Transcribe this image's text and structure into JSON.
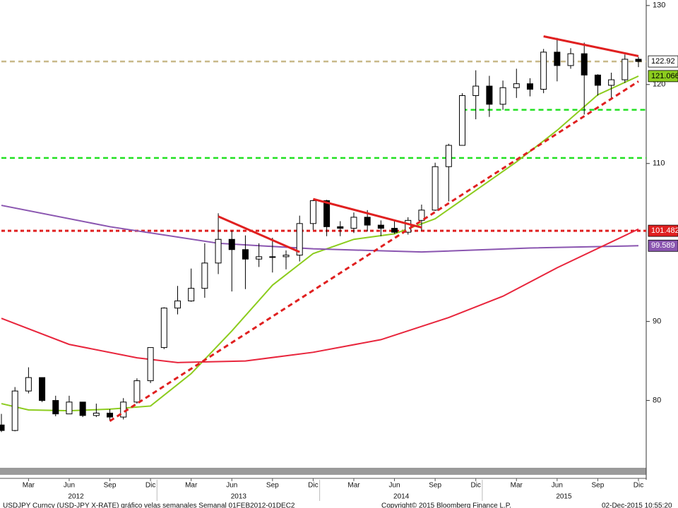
{
  "chart_data": {
    "type": "candlestick",
    "x": [
      "2012-01",
      "2012-02",
      "2012-03",
      "2012-04",
      "2012-05",
      "2012-06",
      "2012-07",
      "2012-08",
      "2012-09",
      "2012-10",
      "2012-11",
      "2012-12",
      "2013-01",
      "2013-02",
      "2013-03",
      "2013-04",
      "2013-05",
      "2013-06",
      "2013-07",
      "2013-08",
      "2013-09",
      "2013-10",
      "2013-11",
      "2013-12",
      "2014-01",
      "2014-02",
      "2014-03",
      "2014-04",
      "2014-05",
      "2014-06",
      "2014-07",
      "2014-08",
      "2014-09",
      "2014-10",
      "2014-11",
      "2014-12",
      "2015-01",
      "2015-02",
      "2015-03",
      "2015-04",
      "2015-05",
      "2015-06",
      "2015-07",
      "2015-08",
      "2015-09",
      "2015-10",
      "2015-11",
      "2015-12"
    ],
    "open": [
      76.9,
      76.2,
      81.2,
      82.9,
      80.0,
      78.3,
      79.8,
      78.1,
      78.4,
      77.9,
      79.8,
      82.5,
      86.7,
      91.7,
      92.6,
      94.2,
      97.4,
      100.4,
      99.1,
      97.9,
      98.2,
      98.2,
      98.4,
      102.4,
      105.3,
      102.0,
      101.8,
      103.2,
      102.2,
      101.8,
      101.3,
      102.8,
      104.1,
      109.6,
      112.3,
      118.6,
      119.8,
      117.5,
      119.6,
      120.1,
      119.4,
      124.1,
      122.4,
      123.9,
      121.2,
      119.9,
      120.6,
      123.2
    ],
    "high": [
      78.3,
      81.7,
      84.2,
      82.6,
      80.6,
      80.6,
      79.7,
      79.6,
      78.9,
      80.3,
      82.8,
      86.7,
      91.8,
      94.5,
      96.7,
      99.9,
      103.7,
      101.5,
      100.9,
      99.9,
      100.6,
      99.0,
      103.4,
      105.4,
      105.4,
      102.7,
      103.8,
      104.1,
      102.8,
      102.8,
      103.2,
      104.8,
      110.1,
      112.5,
      118.9,
      121.8,
      121.1,
      120.5,
      122.0,
      120.8,
      124.5,
      125.9,
      124.6,
      125.3,
      121.3,
      121.5,
      123.8,
      123.5
    ],
    "low": [
      76.0,
      76.1,
      80.9,
      79.8,
      78.0,
      78.8,
      77.9,
      77.9,
      77.4,
      77.6,
      79.6,
      82.2,
      86.5,
      90.9,
      92.5,
      93.0,
      96.0,
      93.8,
      94.1,
      96.9,
      96.2,
      96.6,
      97.6,
      101.6,
      100.8,
      100.8,
      101.2,
      101.4,
      100.8,
      101.1,
      101.0,
      101.5,
      104.0,
      105.2,
      112.5,
      115.6,
      115.9,
      116.8,
      118.3,
      118.5,
      118.9,
      120.4,
      122.0,
      116.2,
      118.6,
      118.1,
      120.2,
      122.2
    ],
    "close": [
      76.2,
      81.2,
      82.9,
      80.0,
      78.3,
      79.8,
      78.1,
      78.4,
      77.9,
      79.8,
      82.5,
      86.7,
      91.7,
      92.6,
      94.2,
      97.4,
      100.4,
      99.1,
      97.9,
      98.2,
      98.2,
      98.4,
      102.4,
      105.3,
      102.0,
      101.8,
      103.2,
      102.2,
      101.8,
      101.3,
      102.8,
      104.1,
      109.6,
      112.3,
      118.6,
      119.8,
      117.5,
      119.6,
      120.1,
      119.4,
      124.1,
      122.4,
      123.9,
      121.2,
      119.9,
      120.6,
      123.2,
      122.92
    ],
    "up_color": "#ffffff",
    "down_color": "#000000",
    "moving_averages": [
      {
        "color": "#8ccc1e",
        "x": [
          "2012-01",
          "2012-03",
          "2012-06",
          "2012-09",
          "2012-12",
          "2013-03",
          "2013-06",
          "2013-09",
          "2013-12",
          "2014-03",
          "2014-06",
          "2014-09",
          "2014-12",
          "2015-03",
          "2015-06",
          "2015-09",
          "2015-12"
        ],
        "values": [
          79.6,
          78.8,
          78.7,
          78.9,
          79.3,
          83.4,
          88.8,
          94.6,
          98.6,
          100.4,
          101.1,
          103.0,
          106.6,
          110.2,
          114.2,
          118.7,
          121.066
        ]
      },
      {
        "color": "#8a55b0",
        "x": [
          "2012-01",
          "2012-09",
          "2013-05",
          "2013-12",
          "2014-08",
          "2015-04",
          "2015-12"
        ],
        "values": [
          104.7,
          102.0,
          99.9,
          99.2,
          98.8,
          99.3,
          99.589
        ]
      },
      {
        "color": "#e8253c",
        "x": [
          "2012-01",
          "2012-06",
          "2012-11",
          "2013-02",
          "2013-07",
          "2013-12",
          "2014-05",
          "2014-10",
          "2015-02",
          "2015-06",
          "2015-12"
        ],
        "values": [
          90.4,
          87.1,
          85.4,
          84.8,
          85.0,
          86.1,
          87.7,
          90.5,
          93.2,
          96.8,
          101.7
        ]
      }
    ],
    "levels": [
      {
        "value": 122.92,
        "color": "#c8b98a",
        "from": "2012-01",
        "style": "dash"
      },
      {
        "value": 116.8,
        "color": "#22e022",
        "from": "2014-11",
        "style": "dash"
      },
      {
        "value": 110.7,
        "color": "#22e022",
        "from": "2012-01",
        "style": "dash"
      },
      {
        "value": 101.482,
        "color": "#e02020",
        "from": "2012-01",
        "style": "dot"
      }
    ],
    "trend_lines": [
      {
        "color": "#e02020",
        "style": "dash",
        "x": [
          "2012-09",
          "2015-12"
        ],
        "values": [
          77.4,
          120.4
        ]
      },
      {
        "color": "#e02020",
        "style": "solid",
        "x": [
          "2013-05",
          "2013-11"
        ],
        "values": [
          103.3,
          98.8
        ]
      },
      {
        "color": "#e02020",
        "style": "solid",
        "x": [
          "2013-12",
          "2014-08"
        ],
        "values": [
          105.5,
          101.9
        ]
      },
      {
        "color": "#e02020",
        "style": "solid",
        "x": [
          "2015-05",
          "2015-12"
        ],
        "values": [
          126.1,
          123.6
        ]
      }
    ],
    "last_value_labels": [
      {
        "value": 122.92,
        "color": "#ffffff",
        "text_color": "#000000"
      },
      {
        "value": 121.066,
        "color": "#8ccc1e",
        "text_color": "#000000"
      },
      {
        "value": 101.482,
        "color": "#e02020",
        "text_color": "#ffffff"
      },
      {
        "value": 99.589,
        "color": "#8a55b0",
        "text_color": "#ffffff"
      }
    ],
    "xlim": [
      "2012-01",
      "2015-12"
    ],
    "ylim": [
      71.3,
      130.7
    ],
    "yticks": [
      80,
      90,
      110,
      120,
      130
    ],
    "xticks": [
      {
        "value": "2012-03",
        "label": "Mar"
      },
      {
        "value": "2012-06",
        "label": "Jun"
      },
      {
        "value": "2012-09",
        "label": "Sep"
      },
      {
        "value": "2012-12",
        "label": "Dic"
      },
      {
        "value": "2013-03",
        "label": "Mar"
      },
      {
        "value": "2013-06",
        "label": "Jun"
      },
      {
        "value": "2013-09",
        "label": "Sep"
      },
      {
        "value": "2013-12",
        "label": "Dic"
      },
      {
        "value": "2014-03",
        "label": "Mar"
      },
      {
        "value": "2014-06",
        "label": "Jun"
      },
      {
        "value": "2014-09",
        "label": "Sep"
      },
      {
        "value": "2014-12",
        "label": "Dic"
      },
      {
        "value": "2015-03",
        "label": "Mar"
      },
      {
        "value": "2015-06",
        "label": "Jun"
      },
      {
        "value": "2015-09",
        "label": "Sep"
      },
      {
        "value": "2015-12",
        "label": "Dic"
      }
    ],
    "year_labels": [
      "2012",
      "2013",
      "2014",
      "2015"
    ],
    "footer": [
      "USDJPY Curncy (USD-JPY X-RATE) gráfico velas semanales  Semanal 01FEB2012-01DEC2",
      "Copyright© 2015 Bloomberg Finance L.P.",
      "02-Dec-2015 10:55:20"
    ]
  }
}
